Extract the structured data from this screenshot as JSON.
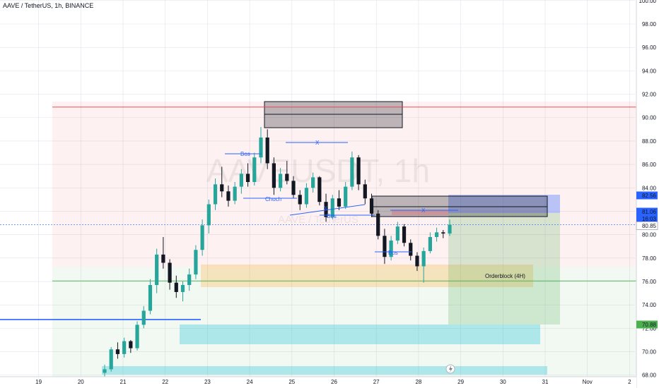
{
  "header": {
    "title": "AAVE / TetherUS, 1h, BINANCE"
  },
  "watermark": {
    "symbol": "AAVEUSDT, 1h",
    "name": "AAVE / TetherUS"
  },
  "colors": {
    "bull": "#26a69a",
    "bear": "#131722",
    "blue": "#2962ff",
    "redline": "#f23645",
    "greenline": "#4caf50"
  },
  "chart_data": {
    "type": "candlestick",
    "ylim": [
      67,
      100
    ],
    "y_ticks": [
      "68.00",
      "70.00",
      "72.00",
      "74.00",
      "76.00",
      "78.00",
      "80.00",
      "82.00",
      "84.00",
      "86.00",
      "88.00",
      "90.00",
      "92.00",
      "94.00",
      "96.00",
      "98.00",
      "100.00"
    ],
    "x_ticks": [
      "19",
      "20",
      "21",
      "22",
      "23",
      "24",
      "25",
      "26",
      "27",
      "28",
      "29",
      "30",
      "31",
      "Nov",
      "2"
    ],
    "price_labels": [
      {
        "value": "82.56",
        "price": 82.56,
        "color": "#2962ff"
      },
      {
        "value": "81.06",
        "price": 81.06,
        "color": "#2962ff"
      },
      {
        "value": "16:03",
        "price": 80.5,
        "color": "#2962ff"
      },
      {
        "value": "80.85",
        "price": 80.85,
        "color": "#131722"
      },
      {
        "value": "70.88",
        "price": 70.88,
        "color": "#4caf50"
      }
    ],
    "levels": [
      {
        "name": "red-level",
        "price": 90.9,
        "color": "#f23645"
      },
      {
        "name": "green-level",
        "price": 76.05,
        "color": "#4caf50"
      },
      {
        "name": "blue-level",
        "price": 72.75,
        "color": "#2962ff"
      }
    ],
    "annotations": [
      {
        "text": "Bos"
      },
      {
        "text": "X"
      },
      {
        "text": "Choch"
      },
      {
        "text": "X"
      },
      {
        "text": "Bos"
      },
      {
        "text": "X"
      },
      {
        "text": "Bos"
      },
      {
        "text": "Orderblock (4H)"
      }
    ],
    "series": [
      {
        "ohlc": [
          [
            68.2,
            68.9,
            67.5,
            68.5
          ],
          [
            68.5,
            70.4,
            68.3,
            70.2
          ],
          [
            70.2,
            70.8,
            69.4,
            69.8
          ],
          [
            69.8,
            71.2,
            69.5,
            70.9
          ],
          [
            70.9,
            71.0,
            69.9,
            70.3
          ],
          [
            70.3,
            72.6,
            70.1,
            72.3
          ],
          [
            72.3,
            73.9,
            72.0,
            73.5
          ],
          [
            73.5,
            76.2,
            73.2,
            75.7
          ],
          [
            75.7,
            78.8,
            75.0,
            78.3
          ],
          [
            78.3,
            79.8,
            77.1,
            77.6
          ],
          [
            77.6,
            77.9,
            75.3,
            75.9
          ],
          [
            75.9,
            76.5,
            74.6,
            75.1
          ],
          [
            75.1,
            76.0,
            74.3,
            75.7
          ],
          [
            75.7,
            77.1,
            75.2,
            76.6
          ],
          [
            76.6,
            79.1,
            76.2,
            78.7
          ],
          [
            78.7,
            81.3,
            78.2,
            80.8
          ],
          [
            80.8,
            83.0,
            80.1,
            82.6
          ],
          [
            82.6,
            84.8,
            82.1,
            84.3
          ],
          [
            84.3,
            85.8,
            83.2,
            83.7
          ],
          [
            83.7,
            84.2,
            82.4,
            82.9
          ],
          [
            82.9,
            84.5,
            82.6,
            84.1
          ],
          [
            84.1,
            85.6,
            83.5,
            85.2
          ],
          [
            85.2,
            86.1,
            84.1,
            84.5
          ],
          [
            84.5,
            87.0,
            84.2,
            86.6
          ],
          [
            86.6,
            89.2,
            86.1,
            88.3
          ],
          [
            88.3,
            89.0,
            85.6,
            86.1
          ],
          [
            86.1,
            86.6,
            83.4,
            84.0
          ],
          [
            84.0,
            85.7,
            83.7,
            85.2
          ],
          [
            85.2,
            86.3,
            84.3,
            84.6
          ],
          [
            84.6,
            85.0,
            83.1,
            83.4
          ],
          [
            83.4,
            83.8,
            82.1,
            82.6
          ],
          [
            82.6,
            84.4,
            82.3,
            84.0
          ],
          [
            84.0,
            85.3,
            83.6,
            84.9
          ],
          [
            84.9,
            85.0,
            82.5,
            82.8
          ],
          [
            82.8,
            83.5,
            81.1,
            81.5
          ],
          [
            81.5,
            83.4,
            81.3,
            83.1
          ],
          [
            83.1,
            83.8,
            82.1,
            82.4
          ],
          [
            82.4,
            84.5,
            82.2,
            84.1
          ],
          [
            84.1,
            87.1,
            83.8,
            86.6
          ],
          [
            86.6,
            86.8,
            83.8,
            84.3
          ],
          [
            84.3,
            84.7,
            82.6,
            83.1
          ],
          [
            83.1,
            83.5,
            81.5,
            81.8
          ],
          [
            81.8,
            82.1,
            79.6,
            79.9
          ],
          [
            79.9,
            80.5,
            77.5,
            78.1
          ],
          [
            78.1,
            79.9,
            77.8,
            79.5
          ],
          [
            79.5,
            81.1,
            79.2,
            80.7
          ],
          [
            80.7,
            80.9,
            79.0,
            79.3
          ],
          [
            79.3,
            79.6,
            77.8,
            78.2
          ],
          [
            78.2,
            78.5,
            76.9,
            77.3
          ],
          [
            77.3,
            78.9,
            75.9,
            78.6
          ],
          [
            78.6,
            80.2,
            78.4,
            79.8
          ],
          [
            79.8,
            80.6,
            79.4,
            80.2
          ],
          [
            80.2,
            80.4,
            79.7,
            80.1
          ],
          [
            80.1,
            81.3,
            79.9,
            80.85
          ]
        ]
      }
    ]
  }
}
